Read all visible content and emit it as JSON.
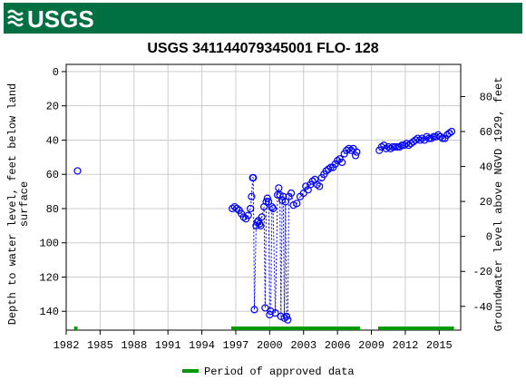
{
  "header": {
    "logo": "USGS"
  },
  "chart_data": {
    "type": "scatter",
    "title": "USGS 341144079345001 FLO- 128",
    "y_label": [
      "Depth to water level, feet below land",
      "surface"
    ],
    "y2_label": "Groundwater level above NGVD 1929, feet",
    "xlim": [
      1982,
      2016.9
    ],
    "xticks": [
      1982,
      1985,
      1988,
      1991,
      1994,
      1997,
      2000,
      2003,
      2006,
      2009,
      2012,
      2015
    ],
    "ylim": [
      -4.2,
      151
    ],
    "y_inverted": true,
    "yticks": [
      0,
      20,
      40,
      60,
      80,
      100,
      120,
      140
    ],
    "y2lim": [
      -53.6,
      98.4
    ],
    "y2ticks": [
      -40,
      -20,
      0,
      20,
      40,
      60,
      80
    ],
    "grid": true,
    "series": [
      {
        "name": "Depth to water level",
        "color": "#0000ff",
        "x": [
          1983.0,
          1990.0,
          1996.7,
          1996.9,
          1997.1,
          1997.3,
          1997.5,
          1997.7,
          1997.9,
          1998.1,
          1998.3,
          1998.4,
          1998.5,
          1998.55,
          1998.65,
          1998.8,
          1998.9,
          1999.0,
          1999.1,
          1999.2,
          1999.3,
          1999.5,
          1999.6,
          1999.7,
          1999.8,
          1999.9,
          2000.0,
          2000.1,
          2000.2,
          2000.3,
          2000.5,
          2000.7,
          2000.8,
          2000.9,
          2001.0,
          2001.1,
          2001.2,
          2001.3,
          2001.4,
          2001.5,
          2001.6,
          2001.7,
          2001.9,
          2002.1,
          2002.4,
          2002.7,
          2003.0,
          2003.2,
          2003.4,
          2003.6,
          2003.8,
          2004.0,
          2004.2,
          2004.4,
          2004.6,
          2004.8,
          2005.0,
          2005.2,
          2005.4,
          2005.6,
          2005.8,
          2006.0,
          2006.2,
          2006.4,
          2006.6,
          2006.8,
          2007.0,
          2007.2,
          2007.4,
          2007.6,
          2007.7,
          2008.7,
          2009.7,
          2009.9,
          2010.1,
          2010.3,
          2010.5,
          2010.7,
          2010.9,
          2011.1,
          2011.3,
          2011.5,
          2011.7,
          2011.9,
          2012.1,
          2012.3,
          2012.5,
          2012.7,
          2012.9,
          2013.1,
          2013.3,
          2013.5,
          2013.7,
          2013.9,
          2014.1,
          2014.3,
          2014.5,
          2014.7,
          2014.9,
          2015.1,
          2015.3,
          2015.5,
          2015.7,
          2015.9,
          2016.1
        ],
        "values": [
          58,
          null,
          80,
          79,
          80,
          81,
          83,
          85,
          86,
          84,
          80,
          73,
          62,
          62,
          139,
          90,
          88,
          87,
          89,
          90,
          85,
          79,
          138,
          76,
          74,
          76,
          142,
          140,
          79,
          80,
          141,
          72,
          68,
          72,
          143,
          75,
          73,
          144,
          76,
          143,
          145,
          73,
          71,
          78,
          77,
          73,
          71,
          67,
          69,
          66,
          64,
          63,
          66,
          67,
          62,
          60,
          58,
          57,
          56,
          56,
          54,
          52,
          51,
          53,
          48,
          46,
          45,
          46,
          45,
          49,
          47,
          null,
          46,
          44,
          43,
          45,
          44,
          45,
          44,
          44,
          44,
          44,
          43,
          43,
          42,
          43,
          42,
          41,
          40,
          39,
          40,
          39,
          40,
          38,
          39,
          39,
          38,
          38,
          37,
          38,
          39,
          39,
          37,
          36,
          35
        ]
      }
    ],
    "approved": {
      "name": "Period of approved data",
      "color": "#009900",
      "periods": [
        [
          1982.7,
          1983.0
        ],
        [
          1996.6,
          2008.0
        ],
        [
          2009.6,
          2016.3
        ]
      ]
    },
    "legend": "bottom"
  }
}
